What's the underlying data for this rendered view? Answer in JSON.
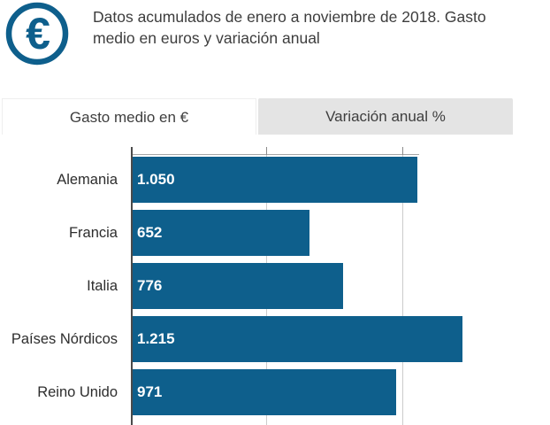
{
  "header": {
    "icon": "euro-icon",
    "title": "Datos acumulados de enero a noviembre de 2018. Gasto medio en euros y variación anual"
  },
  "tabs": [
    {
      "label": "Gasto medio en €",
      "active": true
    },
    {
      "label": "Variación anual %",
      "active": false
    }
  ],
  "chart_data": {
    "type": "bar",
    "orientation": "horizontal",
    "categories": [
      "Alemania",
      "Francia",
      "Italia",
      "Países Nórdicos",
      "Reino Unido"
    ],
    "values": [
      1050,
      652,
      776,
      1215,
      971
    ],
    "value_labels": [
      "1.050",
      "652",
      "776",
      "1.215",
      "971"
    ],
    "x_ticks": [
      0,
      500,
      1000
    ],
    "xlim": [
      0,
      1530
    ],
    "grid": true,
    "legend": "none",
    "value_label_position": "inside-start"
  },
  "colors": {
    "accent": "#0e5f8c",
    "bar": "#0e5f8c",
    "inactive_tab_bg": "#e4e4e4",
    "grid_line": "#cccccc",
    "axis_line": "#4a4a4a",
    "text": "#3d3d3d"
  }
}
